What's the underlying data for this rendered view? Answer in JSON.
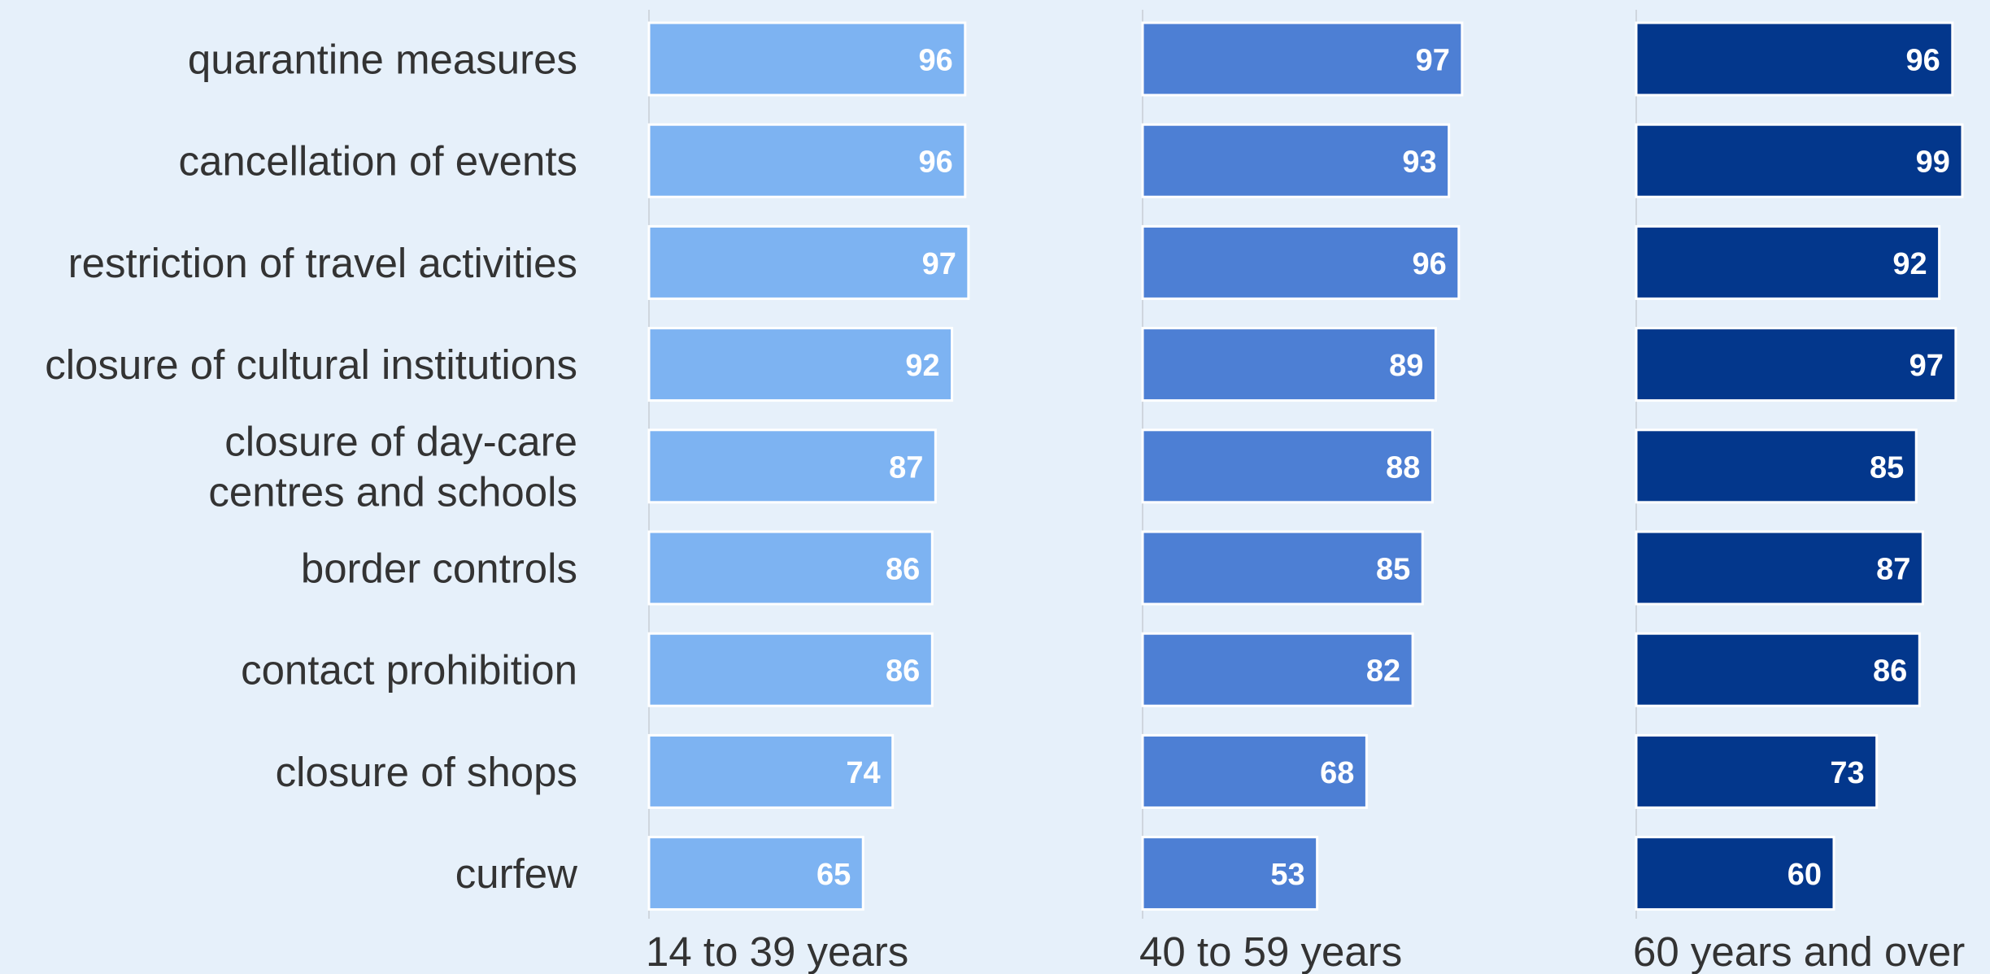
{
  "chart_data": {
    "type": "bar",
    "orientation": "horizontal",
    "title": "",
    "xlabel": "",
    "ylabel": "",
    "xlim": [
      0,
      100
    ],
    "grid": false,
    "legend": "none",
    "categories": [
      "quarantine measures",
      "cancellation of events",
      "restriction of travel activities",
      "closure of cultural institutions",
      "closure of day-care centres and schools",
      "border controls",
      "contact prohibition",
      "closure of shops",
      "curfew"
    ],
    "category_lines": [
      [
        "quarantine measures"
      ],
      [
        "cancellation of events"
      ],
      [
        "restriction of travel activities"
      ],
      [
        "closure of cultural institutions"
      ],
      [
        "closure of day-care",
        "centres and schools"
      ],
      [
        "border controls"
      ],
      [
        "contact prohibition"
      ],
      [
        "closure of shops"
      ],
      [
        "curfew"
      ]
    ],
    "series": [
      {
        "name": "14 to 39 years",
        "color": "#7db3f2",
        "values": [
          96,
          96,
          97,
          92,
          87,
          86,
          86,
          74,
          65
        ]
      },
      {
        "name": "40 to 59 years",
        "color": "#4d7fd4",
        "values": [
          97,
          93,
          96,
          89,
          88,
          85,
          82,
          68,
          53
        ]
      },
      {
        "name": "60 years and over",
        "color": "#03378c",
        "values": [
          96,
          99,
          92,
          97,
          85,
          87,
          86,
          73,
          60
        ]
      }
    ]
  }
}
